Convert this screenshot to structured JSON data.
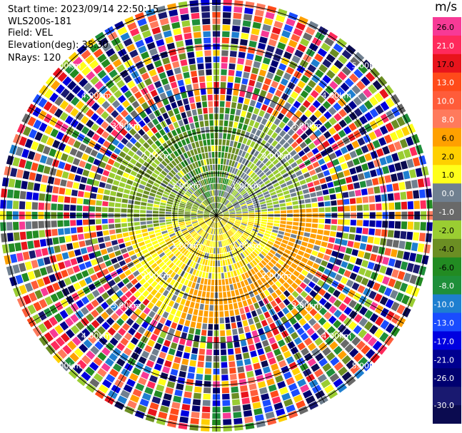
{
  "info": {
    "start_time": "Start time: 2023/09/14 22:50:15",
    "instrument": "WLS200s-181",
    "field": "Field: VEL",
    "elevation": "Elevation(deg): 35.30",
    "nrays": "NRays: 120"
  },
  "chart_data": {
    "type": "heatmap",
    "projection": "polar PPI",
    "field": "VEL",
    "units": "m/s",
    "rays": 120,
    "range_ring_labels": [
      "1.00km",
      "2.00km",
      "3.00km",
      "4.00km",
      "5.00km"
    ],
    "range_rings_km": [
      1,
      2,
      3,
      4,
      5
    ],
    "colorbar": {
      "unit": "m/s",
      "tick_labels": [
        "26.0",
        "21.0",
        "17.0",
        "13.0",
        "10.0",
        "8.0",
        "6.0",
        "2.0",
        "1.0",
        "0.0",
        "-1.0",
        "-2.0",
        "-4.0",
        "-6.0",
        "-8.0",
        "-10.0",
        "-13.0",
        "-17.0",
        "-21.0",
        "-26.0",
        "-30.0"
      ],
      "colors": [
        "#f73a96",
        "#ff2a5c",
        "#e8141c",
        "#ff4a1a",
        "#ff5c3a",
        "#ff7a5c",
        "#ffa000",
        "#ffd000",
        "#ffff1a",
        "#708090",
        "#696969",
        "#9acd32",
        "#6b8e23",
        "#228b22",
        "#1e8f3a",
        "#1e7fd0",
        "#1a4cff",
        "#0000e0",
        "#000090",
        "#000070",
        "#191970",
        "#0b0b50"
      ]
    }
  },
  "colors": {
    "ring_line": "#000000",
    "background": "#ffffff"
  }
}
